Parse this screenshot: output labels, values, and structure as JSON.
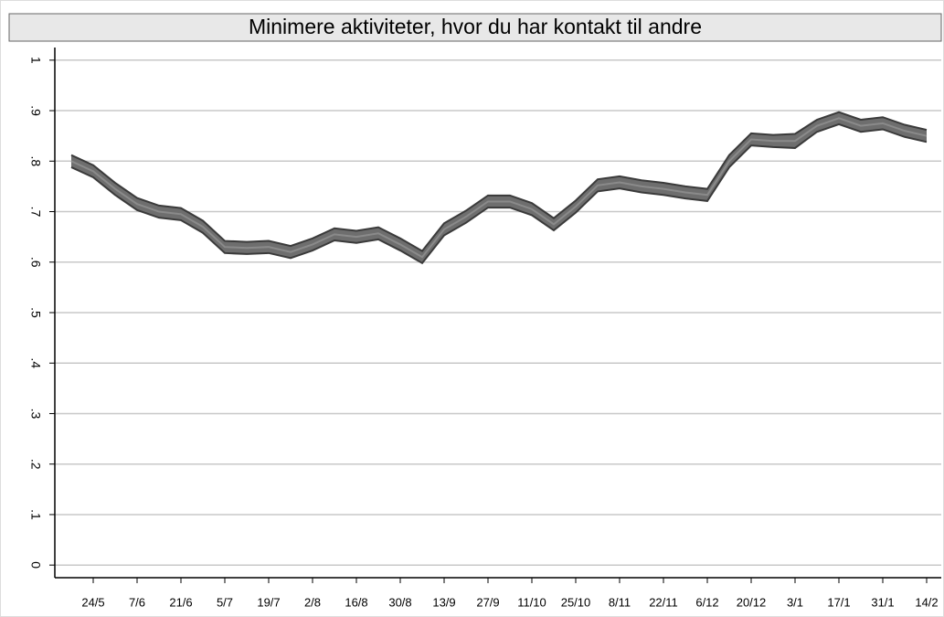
{
  "chart_data": {
    "type": "line-band",
    "title": "Minimere aktiviteter, hvor du har kontakt til andre",
    "categories": [
      null,
      "24/5",
      null,
      "7/6",
      null,
      "21/6",
      null,
      "5/7",
      null,
      "19/7",
      null,
      "2/8",
      null,
      "16/8",
      null,
      "30/8",
      null,
      "13/9",
      null,
      "27/9",
      null,
      "11/10",
      null,
      "25/10",
      null,
      "8/11",
      null,
      "22/11",
      null,
      "6/12",
      null,
      "20/12",
      null,
      "3/1",
      null,
      "17/1",
      null,
      "31/1",
      null,
      "14/2"
    ],
    "values": [
      0.8,
      0.78,
      0.745,
      0.715,
      0.7,
      0.695,
      0.67,
      0.63,
      0.628,
      0.63,
      0.62,
      0.635,
      0.655,
      0.65,
      0.657,
      0.635,
      0.61,
      0.665,
      0.69,
      0.72,
      0.72,
      0.705,
      0.675,
      0.71,
      0.752,
      0.758,
      0.75,
      0.745,
      0.738,
      0.733,
      0.8,
      0.843,
      0.84,
      0.84,
      0.87,
      0.885,
      0.87,
      0.875,
      0.86,
      0.85
    ],
    "lower": [
      0.788,
      0.768,
      0.733,
      0.703,
      0.688,
      0.683,
      0.658,
      0.618,
      0.616,
      0.618,
      0.608,
      0.623,
      0.643,
      0.638,
      0.645,
      0.623,
      0.598,
      0.653,
      0.678,
      0.708,
      0.708,
      0.693,
      0.663,
      0.698,
      0.74,
      0.746,
      0.738,
      0.733,
      0.726,
      0.721,
      0.788,
      0.831,
      0.828,
      0.826,
      0.858,
      0.873,
      0.858,
      0.863,
      0.848,
      0.838
    ],
    "upper": [
      0.812,
      0.792,
      0.757,
      0.727,
      0.712,
      0.707,
      0.682,
      0.642,
      0.64,
      0.642,
      0.632,
      0.647,
      0.667,
      0.662,
      0.669,
      0.647,
      0.622,
      0.677,
      0.702,
      0.732,
      0.732,
      0.717,
      0.687,
      0.722,
      0.764,
      0.77,
      0.762,
      0.757,
      0.75,
      0.745,
      0.812,
      0.855,
      0.852,
      0.854,
      0.882,
      0.897,
      0.882,
      0.887,
      0.872,
      0.862
    ],
    "color": "#6e6e6e",
    "edge_color": "#3a3a3a",
    "ylim": [
      -0.025,
      1.025
    ],
    "yticks": [
      0,
      {
        "value": 0.1,
        "label": ".1"
      },
      {
        "value": 0.2,
        "label": ".2"
      },
      {
        "value": 0.3,
        "label": ".3"
      },
      {
        "value": 0.4,
        "label": ".4"
      },
      {
        "value": 0.5,
        "label": ".5"
      },
      {
        "value": 0.6,
        "label": ".6"
      },
      {
        "value": 0.7,
        "label": ".7"
      },
      {
        "value": 0.8,
        "label": ".8"
      },
      {
        "value": 0.9,
        "label": ".9"
      },
      1
    ],
    "grid": true
  }
}
